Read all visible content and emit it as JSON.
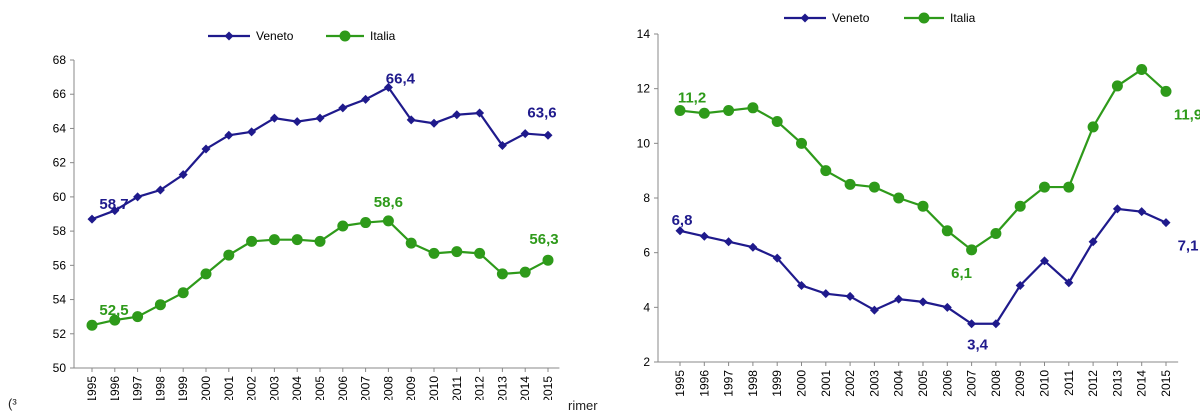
{
  "footnote_left": "(³",
  "footnote_mid": "rimer",
  "chart_data": [
    {
      "type": "line",
      "x": [
        "1995",
        "1996",
        "1997",
        "1998",
        "1999",
        "2000",
        "2001",
        "2002",
        "2003",
        "2004",
        "2005",
        "2006",
        "2007",
        "2008",
        "2009",
        "2010",
        "2011",
        "2012",
        "2013",
        "2014",
        "2015"
      ],
      "ylim": [
        50,
        68
      ],
      "yticks": [
        "50",
        "52",
        "54",
        "56",
        "58",
        "60",
        "62",
        "64",
        "66",
        "68"
      ],
      "grid": false,
      "legend": "top",
      "series": [
        {
          "name": "Veneto",
          "color": "#1f1a8c",
          "marker": "diamond",
          "values": [
            58.7,
            59.2,
            60.0,
            60.4,
            61.3,
            62.8,
            63.6,
            63.8,
            64.6,
            64.4,
            64.6,
            65.2,
            65.7,
            66.4,
            64.5,
            64.3,
            64.8,
            64.9,
            63.0,
            63.7,
            63.6
          ]
        },
        {
          "name": "Italia",
          "color": "#2e9a1a",
          "marker": "circle",
          "values": [
            52.5,
            52.8,
            53.0,
            53.7,
            54.4,
            55.5,
            56.6,
            57.4,
            57.5,
            57.5,
            57.4,
            58.3,
            58.5,
            58.6,
            57.3,
            56.7,
            56.8,
            56.7,
            55.5,
            55.6,
            56.3
          ]
        }
      ],
      "annotations": [
        {
          "text": "58,7",
          "series": 0,
          "index": 0
        },
        {
          "text": "66,4",
          "series": 0,
          "index": 13
        },
        {
          "text": "63,6",
          "series": 0,
          "index": 20
        },
        {
          "text": "52,5",
          "series": 1,
          "index": 0
        },
        {
          "text": "58,6",
          "series": 1,
          "index": 13
        },
        {
          "text": "56,3",
          "series": 1,
          "index": 20
        }
      ]
    },
    {
      "type": "line",
      "x": [
        "1995",
        "1996",
        "1997",
        "1998",
        "1999",
        "2000",
        "2001",
        "2002",
        "2003",
        "2004",
        "2005",
        "2006",
        "2007",
        "2008",
        "2009",
        "2010",
        "2011",
        "2012",
        "2013",
        "2014",
        "2015"
      ],
      "ylim": [
        2,
        14
      ],
      "yticks": [
        "2",
        "4",
        "6",
        "8",
        "10",
        "12",
        "14"
      ],
      "grid": false,
      "legend": "top",
      "series": [
        {
          "name": "Veneto",
          "color": "#1f1a8c",
          "marker": "diamond",
          "values": [
            6.8,
            6.6,
            6.4,
            6.2,
            5.8,
            4.8,
            4.5,
            4.4,
            3.9,
            4.3,
            4.2,
            4.0,
            3.4,
            3.4,
            4.8,
            5.7,
            4.9,
            6.4,
            7.6,
            7.5,
            7.1
          ]
        },
        {
          "name": "Italia",
          "color": "#2e9a1a",
          "marker": "circle",
          "values": [
            11.2,
            11.1,
            11.2,
            11.3,
            10.8,
            10.0,
            9.0,
            8.5,
            8.4,
            8.0,
            7.7,
            6.8,
            6.1,
            6.7,
            7.7,
            8.4,
            8.4,
            10.6,
            12.1,
            12.7,
            11.9
          ]
        }
      ],
      "annotations": [
        {
          "text": "6,8",
          "series": 0,
          "index": 0
        },
        {
          "text": "3,4",
          "series": 0,
          "index": 12
        },
        {
          "text": "7,1",
          "series": 0,
          "index": 20
        },
        {
          "text": "11,2",
          "series": 1,
          "index": 0
        },
        {
          "text": "6,1",
          "series": 1,
          "index": 12
        },
        {
          "text": "11,9",
          "series": 1,
          "index": 20
        }
      ]
    }
  ]
}
